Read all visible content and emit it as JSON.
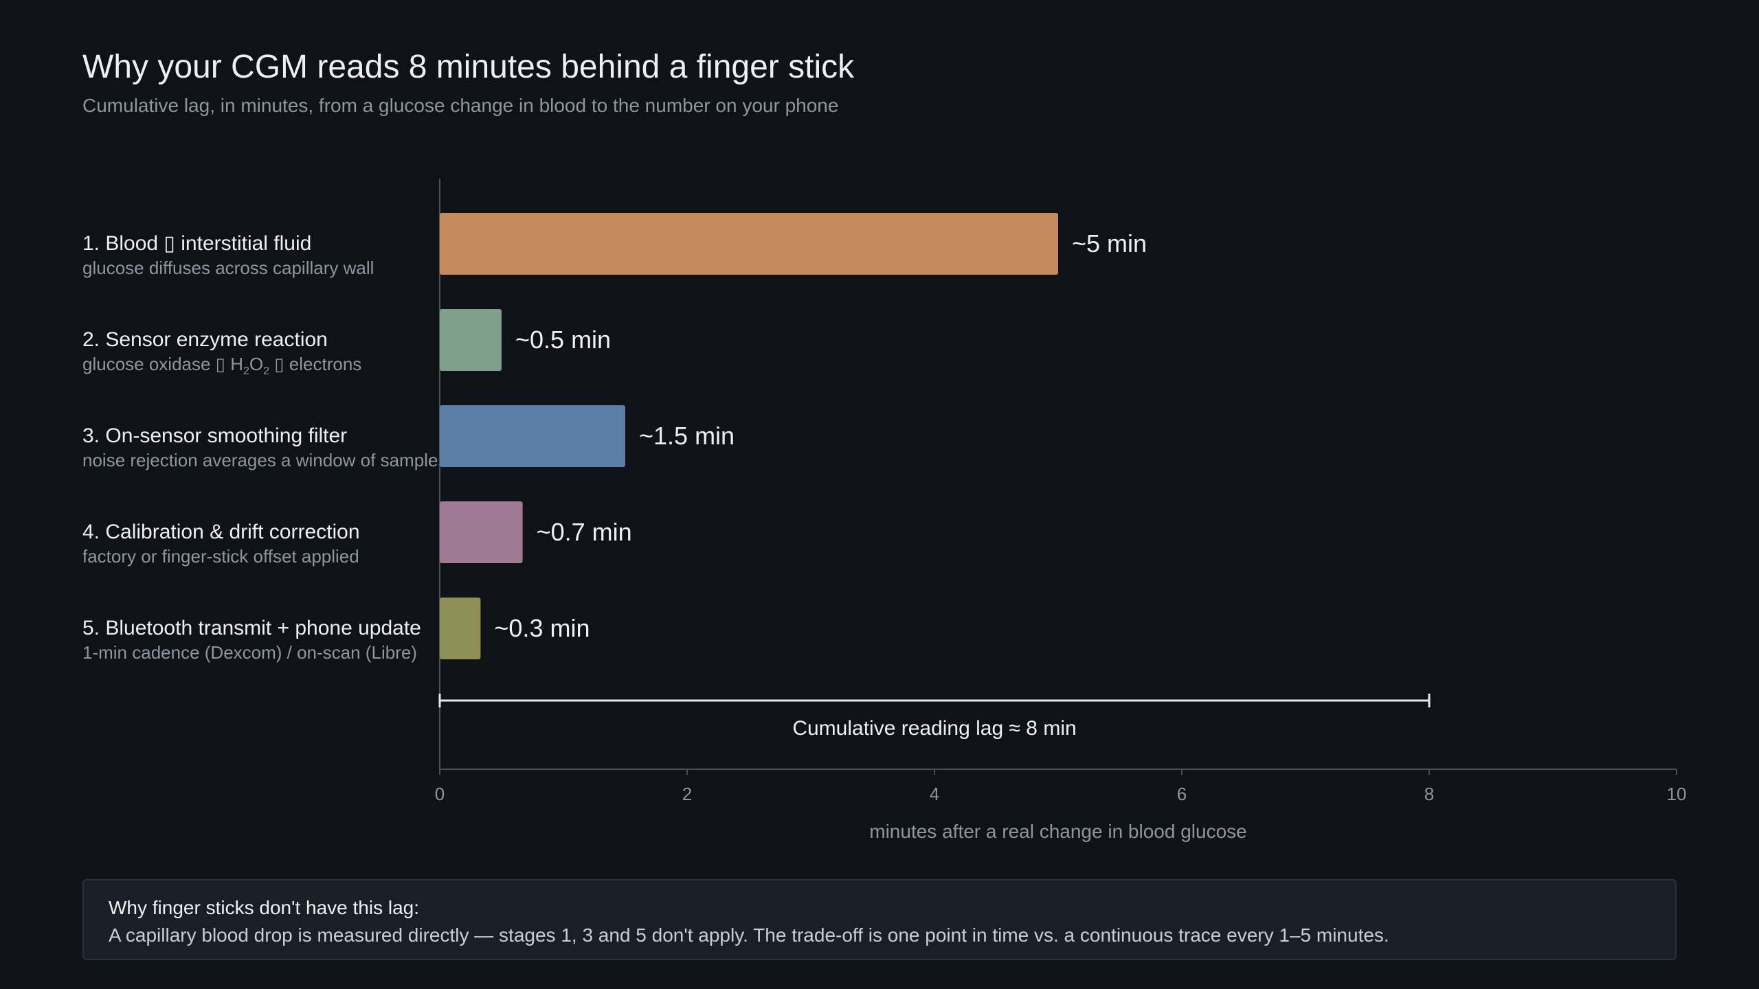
{
  "header": {
    "title": "Why your CGM reads 8 minutes behind a finger stick",
    "subtitle": "Cumulative lag, in minutes, from a glucose change in blood to the number on your phone"
  },
  "stages": [
    {
      "name": "1. Blood ▯ interstitial fluid",
      "desc_parts": [
        "glucose diffuses across capillary wall"
      ]
    },
    {
      "name": "2. Sensor enzyme reaction",
      "desc_parts": [
        "glucose oxidase ▯ H",
        "2",
        "O",
        "2",
        " ▯ electrons"
      ]
    },
    {
      "name": "3. On-sensor smoothing filter",
      "desc_parts": [
        "noise rejection averages a window of samples"
      ]
    },
    {
      "name": "4. Calibration & drift correction",
      "desc_parts": [
        "factory or finger-stick offset applied"
      ]
    },
    {
      "name": "5. Bluetooth transmit + phone update",
      "desc_parts": [
        "1-min cadence (Dexcom) / on-scan (Libre)"
      ]
    }
  ],
  "chart_data": {
    "type": "bar",
    "orientation": "horizontal",
    "categories": [
      "1. Blood ▯ interstitial fluid",
      "2. Sensor enzyme reaction",
      "3. On-sensor smoothing filter",
      "4. Calibration & drift correction",
      "5. Bluetooth transmit + phone update"
    ],
    "values": [
      5,
      0.5,
      1.5,
      0.67,
      0.33
    ],
    "value_labels": [
      "~5 min",
      "~0.5 min",
      "~1.5 min",
      "~0.7 min",
      "~0.3 min"
    ],
    "colors": [
      "#c48b5c",
      "#7f9f8a",
      "#5b7fa6",
      "#a07a94",
      "#8f8f5a"
    ],
    "xlabel": "minutes after a real change in blood glucose",
    "xlim": [
      0,
      10
    ],
    "xticks": [
      0,
      2,
      4,
      6,
      8,
      10
    ],
    "annotation": {
      "from": 0,
      "to": 8,
      "label": "Cumulative reading lag ≈ 8 min"
    },
    "grid": false
  },
  "note": {
    "title": "Why finger sticks don't have this lag:",
    "text": "A capillary blood drop is measured directly — stages 1, 3 and 5 don't apply. The trade-off is one point in time vs. a continuous trace every 1–5 minutes."
  },
  "colors": {
    "background": "#0f1318",
    "axis": "#4a515b",
    "text": "#eef0f3",
    "muted": "#8f969f"
  }
}
